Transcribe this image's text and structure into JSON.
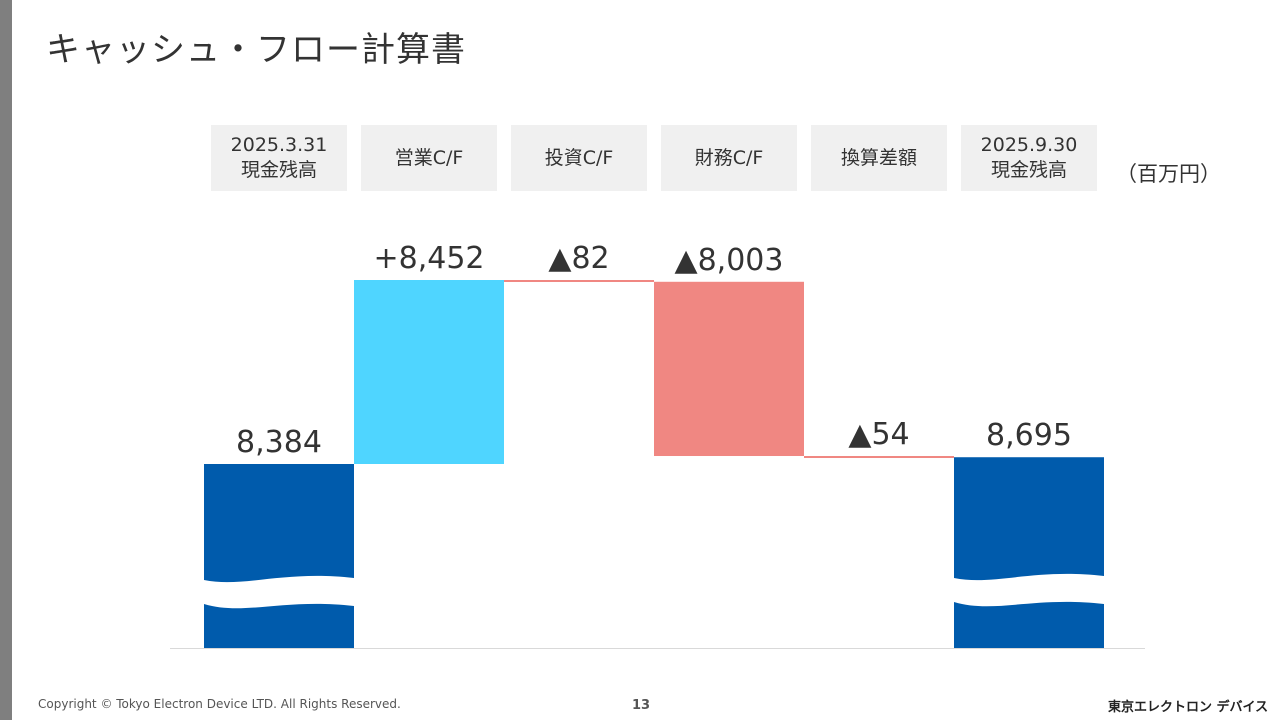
{
  "slide": {
    "title": "キャッシュ・フロー計算書",
    "unit_label": "（百万円）",
    "copyright": "Copyright © Tokyo Electron Device LTD. All Rights Reserved.",
    "page_number": "13",
    "company_logo": "東京エレクトロン デバイス"
  },
  "chart_data": {
    "type": "bar",
    "subtype": "waterfall",
    "title": "キャッシュ・フロー計算書",
    "unit": "百万円",
    "categories": [
      "2025.3.31\n現金残高",
      "営業C/F",
      "投資C/F",
      "財務C/F",
      "換算差額",
      "2025.9.30\n現金残高"
    ],
    "values": [
      8384,
      8452,
      -82,
      -8003,
      -54,
      8695
    ],
    "labels": [
      "8,384",
      "+8,452",
      "▲82",
      "▲8,003",
      "▲54",
      "8,695"
    ],
    "kinds": [
      "total",
      "delta",
      "delta",
      "delta",
      "delta",
      "total"
    ],
    "axis_break": true,
    "colors": {
      "total": "#005bac",
      "increase": "#4fd5ff",
      "decrease": "#f08782",
      "connector": "#f08782",
      "baseline": "#d9d9d9"
    }
  }
}
